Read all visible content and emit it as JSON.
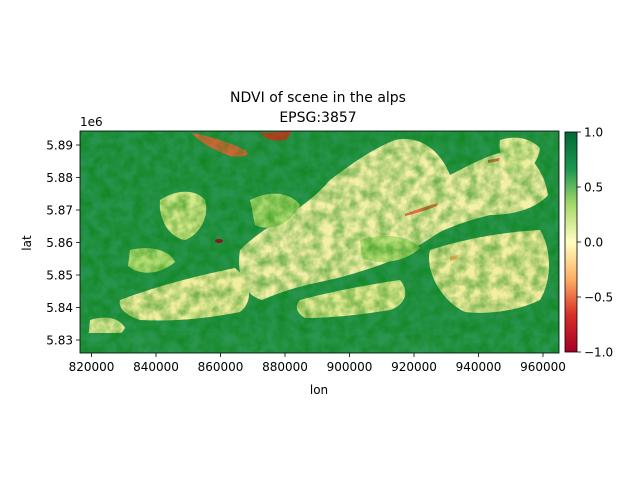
{
  "figure": {
    "title_line1": "NDVI of scene in the alps",
    "title_line2": "EPSG:3857",
    "xlabel": "lon",
    "ylabel": "lat",
    "y_offset_text": "1e6"
  },
  "chart_data": {
    "type": "heatmap",
    "title": "NDVI of scene in the alps\nEPSG:3857",
    "xlabel": "lon",
    "ylabel": "lat",
    "xlim": [
      816500,
      964500
    ],
    "ylim": [
      5826000,
      5894000
    ],
    "x_ticks": [
      820000,
      840000,
      860000,
      880000,
      900000,
      920000,
      940000,
      960000
    ],
    "x_tick_labels": [
      "820000",
      "840000",
      "860000",
      "880000",
      "900000",
      "920000",
      "940000",
      "960000"
    ],
    "y_ticks": [
      5830000,
      5840000,
      5850000,
      5860000,
      5870000,
      5880000,
      5890000
    ],
    "y_tick_labels": [
      "5.83",
      "5.84",
      "5.85",
      "5.86",
      "5.87",
      "5.88",
      "5.89"
    ],
    "y_offset": "1e6",
    "colorbar": {
      "colormap": "RdYlGn",
      "vmin": -1.0,
      "vmax": 1.0,
      "ticks": [
        -1.0,
        -0.5,
        0.0,
        0.5,
        1.0
      ],
      "tick_labels": [
        "−1.0",
        "−0.5",
        "0.0",
        "0.5",
        "1.0"
      ],
      "colors": [
        "#a50026",
        "#f46d43",
        "#fee08b",
        "#ffffbf",
        "#d9ef8b",
        "#66bd63",
        "#006837"
      ]
    },
    "grid": false,
    "legend": "none"
  }
}
